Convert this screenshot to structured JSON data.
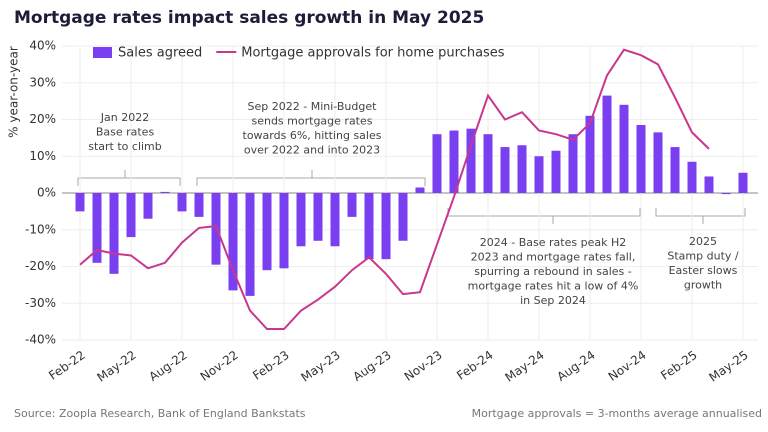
{
  "chart_data": {
    "type": "bar_line",
    "title": "Mortgage rates impact sales growth in May 2025",
    "y_label": "% year-on-year",
    "source": "Source: Zoopla Research, Bank of England Bankstats",
    "note": "Mortgage approvals = 3-months average annualised",
    "categories": [
      "Feb-22",
      null,
      null,
      "May-22",
      null,
      null,
      "Aug-22",
      null,
      null,
      "Nov-22",
      null,
      null,
      "Feb-23",
      null,
      null,
      "May-23",
      null,
      null,
      "Aug-23",
      null,
      null,
      "Nov-23",
      null,
      null,
      "Feb-24",
      null,
      null,
      "May-24",
      null,
      null,
      "Aug-24",
      null,
      null,
      "Nov-24",
      null,
      null,
      "Feb-25",
      null,
      null,
      "May-25"
    ],
    "series": [
      {
        "name": "Sales agreed",
        "type": "bar",
        "color": "#7b3ff2",
        "values": [
          -5,
          -19,
          -22,
          -12,
          -7,
          0.3,
          -5,
          -6.5,
          -19.5,
          -26.5,
          -28,
          -21,
          -20.5,
          -14.5,
          -13,
          -14.5,
          -6.5,
          -18,
          -18,
          -13,
          1.5,
          16,
          17,
          17.5,
          16,
          12.5,
          13,
          10,
          11.5,
          16,
          21,
          26.5,
          24,
          18.5,
          16.5,
          12.5,
          8.5,
          4.5,
          -0.3,
          5.5
        ]
      },
      {
        "name": "Mortgage approvals for home purchases",
        "type": "line",
        "color": "#c8378c",
        "values": [
          -19.5,
          -15.5,
          -16.5,
          -17,
          -20.5,
          -19,
          -13.5,
          -9.5,
          -9,
          -21,
          -32,
          -37,
          -37,
          -32,
          -29,
          -25.5,
          -21,
          -17.5,
          -22,
          -27.5,
          -27,
          -14,
          -1,
          13,
          26.5,
          20,
          22,
          17,
          16,
          14.5,
          19,
          32,
          39,
          37.5,
          35,
          26,
          16.5,
          12,
          null,
          null
        ]
      }
    ],
    "ylim": [
      -40,
      40
    ],
    "yticks": [
      {
        "value": -40,
        "label": "-40%"
      },
      {
        "value": -30,
        "label": "-30%"
      },
      {
        "value": -20,
        "label": "-20%"
      },
      {
        "value": -10,
        "label": "-10%"
      },
      {
        "value": 0,
        "label": "0%"
      },
      {
        "value": 10,
        "label": "10%"
      },
      {
        "value": 20,
        "label": "20%"
      },
      {
        "value": 30,
        "label": "30%"
      },
      {
        "value": 40,
        "label": "40%"
      }
    ],
    "annotations": [
      [
        "Jan 2022",
        "Base rates",
        "start to climb"
      ],
      [
        "Sep 2022 - Mini-Budget",
        "sends mortgage rates",
        "towards 6%, hitting sales",
        "over 2022 and into 2023"
      ],
      [
        "2024 - Base rates peak H2",
        "2023 and mortgage rates fall,",
        "spurring a rebound in sales -",
        "mortgage rates hit a low of 4%",
        "in Sep 2024"
      ],
      [
        "2025",
        "Stamp duty /",
        "Easter slows",
        "growth"
      ]
    ]
  }
}
